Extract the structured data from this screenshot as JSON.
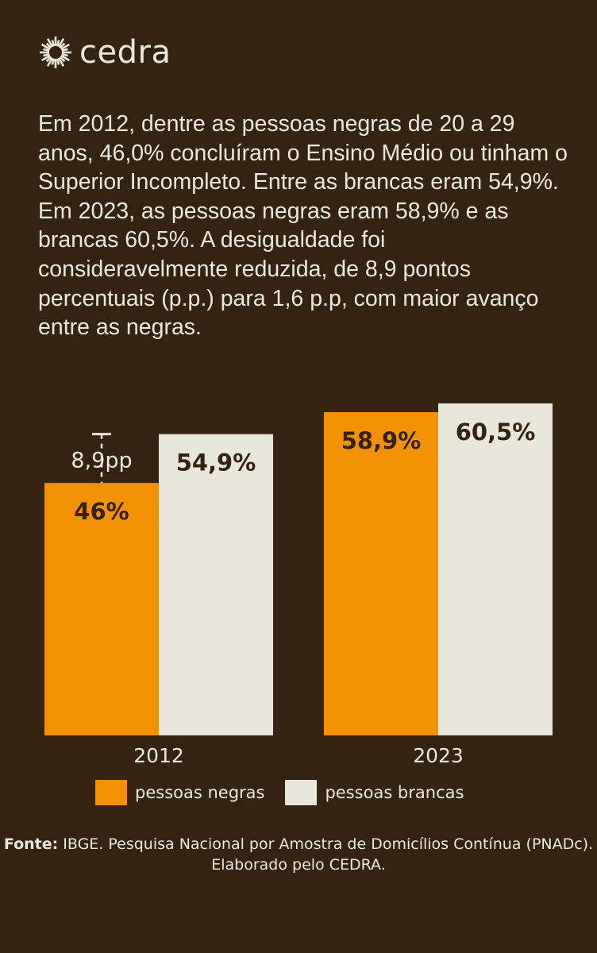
{
  "brand": {
    "name": "cedra",
    "icon": "sunburst-logo-icon"
  },
  "intro_text": "Em 2012, dentre as pessoas negras de 20 a 29 anos, 46,0% concluíram o Ensino Médio ou tinham o Superior Incompleto. Entre as brancas eram 54,9%. Em 2023, as pessoas negras eram 58,9% e as brancas 60,5%. A desigualdade foi consideravelmente reduzida, de 8,9 pontos percentuais (p.p.) para 1,6 p.p, com maior avanço entre as negras.",
  "colors": {
    "background": "#352312",
    "negras": "#f29103",
    "brancas": "#e9e7dc",
    "text": "#ebe8dd"
  },
  "chart_data": {
    "type": "bar",
    "title": "",
    "xlabel": "",
    "ylabel": "",
    "ylim": [
      0,
      60.5
    ],
    "grid": false,
    "categories": [
      "2012",
      "2023"
    ],
    "series": [
      {
        "name": "pessoas negras",
        "values": [
          46.0,
          58.9
        ],
        "labels": [
          "46%",
          "58,9%"
        ],
        "color": "#f29103"
      },
      {
        "name": "pessoas brancas",
        "values": [
          54.9,
          60.5
        ],
        "labels": [
          "54,9%",
          "60,5%"
        ],
        "color": "#e9e7dc"
      }
    ],
    "annotations": [
      {
        "category": "2012",
        "text": "8,9pp",
        "from": 46.0,
        "to": 54.9
      }
    ],
    "legend": {
      "placement": "bottom",
      "entries": [
        "pessoas negras",
        "pessoas brancas"
      ]
    }
  },
  "source": {
    "label": "Fonte:",
    "text": " IBGE. Pesquisa Nacional por Amostra de Domicílios Contínua (PNADc). Elaborado pelo CEDRA."
  }
}
